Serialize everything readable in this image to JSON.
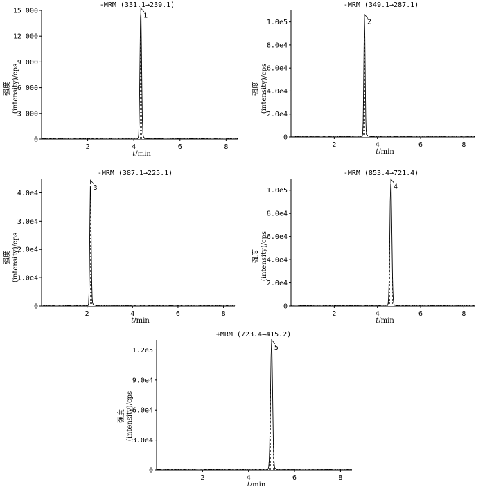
{
  "chart_data": [
    {
      "type": "line",
      "title": "-MRM (331.1→239.1)",
      "ylabel_cn": "强度",
      "ylabel": "(intensity)/cps",
      "xlabel_italic": "t",
      "xlabel_unit": "/min",
      "xlim": [
        0,
        8.5
      ],
      "ylim": [
        0,
        15000
      ],
      "xticks": [
        2,
        4,
        6,
        8
      ],
      "xtick_labels": [
        "2",
        "4",
        "6",
        "8"
      ],
      "yticks": [
        0,
        3000,
        6000,
        9000,
        12000,
        15000
      ],
      "ytick_labels": [
        "0",
        "3 000",
        "6 000",
        "9 000",
        "12 000",
        "15 000"
      ],
      "peak": {
        "label": "1",
        "rt": 4.3,
        "height": 14800,
        "width": 0.035
      }
    },
    {
      "type": "line",
      "title": "-MRM (349.1→287.1)",
      "ylabel_cn": "强度",
      "ylabel": "(intensity)/cps",
      "xlabel_italic": "t",
      "xlabel_unit": "/min",
      "xlim": [
        0,
        8.5
      ],
      "ylim": [
        0,
        110000
      ],
      "xticks": [
        2,
        4,
        6,
        8
      ],
      "xtick_labels": [
        "2",
        "4",
        "6",
        "8"
      ],
      "yticks": [
        0,
        20000,
        40000,
        60000,
        80000,
        100000
      ],
      "ytick_labels": [
        "0",
        "2.0e4",
        "4.0e4",
        "6.0e4",
        "8.0e4",
        "1.0e5"
      ],
      "peak": {
        "label": "2",
        "rt": 3.4,
        "height": 103000,
        "width": 0.03
      }
    },
    {
      "type": "line",
      "title": "-MRM (387.1→225.1)",
      "ylabel_cn": "强度",
      "ylabel": "(intensity)/cps",
      "xlabel_italic": "t",
      "xlabel_unit": "/min",
      "xlim": [
        0,
        8.5
      ],
      "ylim": [
        0,
        45000
      ],
      "xticks": [
        2,
        4,
        6,
        8
      ],
      "xtick_labels": [
        "2",
        "4",
        "6",
        "8"
      ],
      "yticks": [
        0,
        10000,
        20000,
        30000,
        40000
      ],
      "ytick_labels": [
        "0",
        "1.0e4",
        "2.0e4",
        "3.0e4",
        "4.0e4"
      ],
      "peak": {
        "label": "3",
        "rt": 2.15,
        "height": 43000,
        "width": 0.03
      }
    },
    {
      "type": "line",
      "title": "-MRM (853.4→721.4)",
      "ylabel_cn": "强度",
      "ylabel": "(intensity)/cps",
      "xlabel_italic": "t",
      "xlabel_unit": "/min",
      "xlim": [
        0,
        8.5
      ],
      "ylim": [
        0,
        110000
      ],
      "xticks": [
        2,
        4,
        6,
        8
      ],
      "xtick_labels": [
        "2",
        "4",
        "6",
        "8"
      ],
      "yticks": [
        0,
        20000,
        40000,
        60000,
        80000,
        100000
      ],
      "ytick_labels": [
        "0",
        "2.0e4",
        "4.0e4",
        "6.0e4",
        "8.0e4",
        "1.0e5"
      ],
      "peak": {
        "label": "4",
        "rt": 4.62,
        "height": 106000,
        "width": 0.045
      }
    },
    {
      "type": "line",
      "title": "+MRM (723.4→415.2)",
      "ylabel_cn": "强度",
      "ylabel": "(intensity)/cps",
      "xlabel_italic": "t",
      "xlabel_unit": "/min",
      "xlim": [
        0,
        8.5
      ],
      "ylim": [
        0,
        130000
      ],
      "xticks": [
        2,
        4,
        6,
        8
      ],
      "xtick_labels": [
        "2",
        "4",
        "6",
        "8"
      ],
      "yticks": [
        0,
        30000,
        60000,
        90000,
        120000
      ],
      "ytick_labels": [
        "0",
        "3.0e4",
        "6.0e4",
        "9.0e4",
        "1.2e5"
      ],
      "peak": {
        "label": "5",
        "rt": 5.0,
        "height": 126000,
        "width": 0.045
      }
    }
  ]
}
